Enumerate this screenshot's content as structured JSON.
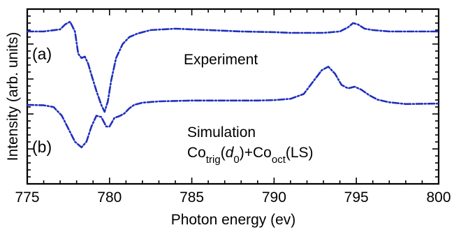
{
  "chart_data": {
    "type": "line",
    "xlabel": "Photon energy (ev)",
    "ylabel": "Intensity (arb. units)",
    "xlim": [
      775,
      800
    ],
    "x_ticks": [
      "775",
      "780",
      "785",
      "790",
      "795",
      "800"
    ],
    "y_ticks_labeled": false,
    "grid": false,
    "line_style": "dash-dot",
    "line_color": "#1f2fbf",
    "annotations": {
      "panel_a": "(a)",
      "panel_b": "(b)",
      "experiment": "Experiment",
      "simulation": "Simulation",
      "formula": {
        "co1": "Co",
        "sub1": "trig",
        "p1": "(",
        "d": "d",
        "dsub": "0",
        "p2": ")+",
        "co2": "Co",
        "sub2": "oct",
        "tail": "(LS)"
      }
    },
    "series": [
      {
        "panel": "(a)",
        "x": [
          775.0,
          776.0,
          777.0,
          777.3,
          777.6,
          777.9,
          778.1,
          778.3,
          778.5,
          778.7,
          778.9,
          779.2,
          779.5,
          779.7,
          779.9,
          780.1,
          780.4,
          780.8,
          781.2,
          781.7,
          782.5,
          784,
          786,
          788,
          790,
          791,
          792,
          793,
          794,
          794.5,
          794.8,
          795.1,
          795.5,
          796,
          797,
          800
        ],
        "y": [
          0.0,
          0.0,
          0.03,
          0.1,
          0.14,
          0.0,
          -0.32,
          -0.38,
          -0.36,
          -0.46,
          -0.62,
          -0.85,
          -1.05,
          -1.15,
          -1.0,
          -0.7,
          -0.38,
          -0.18,
          -0.08,
          -0.03,
          0.02,
          0.04,
          0.02,
          0.0,
          -0.01,
          -0.02,
          -0.02,
          -0.02,
          0.0,
          0.06,
          0.12,
          0.1,
          0.04,
          0.02,
          0.0,
          0.0
        ]
      },
      {
        "panel": "(b)",
        "x": [
          775.0,
          776.0,
          776.6,
          777.1,
          777.5,
          777.9,
          778.3,
          778.6,
          778.9,
          779.2,
          779.5,
          779.8,
          780.0,
          780.3,
          780.6,
          780.9,
          781.2,
          781.5,
          782.0,
          783,
          785,
          787,
          789,
          790,
          791,
          791.8,
          792.4,
          792.9,
          793.3,
          793.7,
          794.1,
          794.5,
          794.9,
          795.3,
          795.8,
          796.3,
          797,
          798,
          800
        ],
        "y": [
          0.0,
          -0.01,
          -0.05,
          -0.25,
          -0.55,
          -0.85,
          -0.98,
          -0.85,
          -0.5,
          -0.25,
          -0.28,
          -0.5,
          -0.5,
          -0.3,
          -0.26,
          -0.2,
          -0.08,
          0.0,
          0.05,
          0.08,
          0.1,
          0.1,
          0.1,
          0.11,
          0.14,
          0.25,
          0.55,
          0.8,
          0.88,
          0.72,
          0.46,
          0.38,
          0.42,
          0.35,
          0.22,
          0.12,
          0.06,
          0.02,
          0.03
        ]
      }
    ]
  }
}
